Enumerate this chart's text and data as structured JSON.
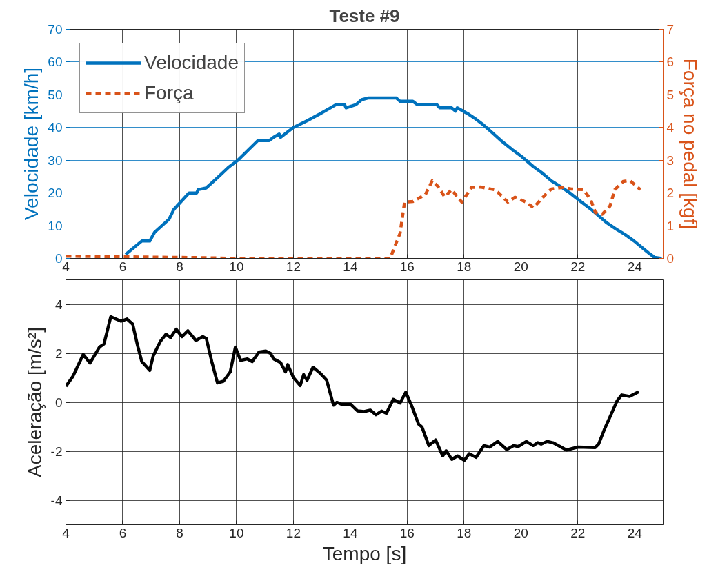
{
  "chart_data": [
    {
      "type": "line",
      "title": "Teste #9",
      "ylabel": "Velocidade [km/h]",
      "y2label": "Força no pedal [kgf]",
      "xlim": [
        4,
        25
      ],
      "xticks": [
        4,
        6,
        8,
        10,
        12,
        14,
        16,
        18,
        20,
        22,
        24
      ],
      "ylim": [
        0,
        70
      ],
      "yticks": [
        0,
        10,
        20,
        30,
        40,
        50,
        60,
        70
      ],
      "y2lim": [
        0,
        7
      ],
      "y2ticks": [
        0,
        1,
        2,
        3,
        4,
        5,
        6,
        7
      ],
      "grid": true,
      "legend": "top left",
      "series": [
        {
          "name": "Velocidade",
          "color": "#0072bd",
          "line_style": "solid",
          "x": [
            6.1,
            6.67,
            6.95,
            7.12,
            7.63,
            7.8,
            8.33,
            8.6,
            8.65,
            8.93,
            9.25,
            9.74,
            10.05,
            10.75,
            11.15,
            11.3,
            11.5,
            11.55,
            12.0,
            12.47,
            12.9,
            13.3,
            13.5,
            13.8,
            13.85,
            14.2,
            14.4,
            14.62,
            15.62,
            15.75,
            16.2,
            16.35,
            17.04,
            17.15,
            17.56,
            17.7,
            17.76,
            18.17,
            18.41,
            18.65,
            18.98,
            19.3,
            19.7,
            20.03,
            20.43,
            20.76,
            21.07,
            21.4,
            21.72,
            22.13,
            22.45,
            23.0,
            23.34,
            23.66,
            23.98,
            24.27,
            24.5,
            24.7,
            24.95
          ],
          "values": [
            1.2,
            5.3,
            5.3,
            8,
            12,
            15,
            20,
            20,
            21,
            21.5,
            24,
            28,
            30,
            36,
            36,
            37,
            38,
            37,
            40,
            42,
            44,
            46,
            47,
            47,
            46,
            47,
            48.5,
            49,
            49,
            48,
            48,
            47,
            47,
            46,
            46,
            45,
            46,
            44,
            42.6,
            41,
            38.5,
            36,
            33.2,
            31.1,
            28.1,
            26,
            23.7,
            21.9,
            20,
            17.2,
            15.1,
            11,
            9,
            7.3,
            5.3,
            3.2,
            1.6,
            0.3,
            0
          ]
        },
        {
          "name": "Força",
          "color": "#d95319",
          "axis": "y2",
          "line_style": "dashed",
          "x": [
            4.0,
            5.0,
            6.0,
            7.0,
            8.0,
            9.0,
            10.0,
            12.0,
            14.0,
            15.4,
            15.75,
            15.91,
            16.2,
            16.64,
            16.88,
            17.08,
            17.32,
            17.56,
            17.92,
            18.26,
            18.58,
            19.06,
            19.23,
            19.54,
            19.79,
            20.2,
            20.44,
            20.83,
            21.07,
            21.48,
            21.77,
            22.2,
            22.45,
            22.62,
            22.86,
            23.13,
            23.3,
            23.59,
            23.83,
            24.2
          ],
          "values": [
            0.07,
            0.06,
            0.05,
            0.04,
            0.03,
            0.02,
            0.0,
            0.0,
            0.0,
            0.0,
            0.77,
            1.72,
            1.74,
            1.95,
            2.37,
            2.2,
            1.88,
            2.1,
            1.72,
            2.17,
            2.18,
            2.1,
            1.99,
            1.72,
            1.87,
            1.71,
            1.55,
            1.92,
            2.12,
            2.17,
            2.12,
            2.1,
            1.8,
            1.4,
            1.35,
            1.6,
            2.1,
            2.35,
            2.38,
            2.1
          ]
        }
      ]
    },
    {
      "type": "line",
      "xlabel": "Tempo [s]",
      "ylabel": "Aceleração [m/s²]",
      "xlim": [
        4,
        25
      ],
      "xticks": [
        4,
        6,
        8,
        10,
        12,
        14,
        16,
        18,
        20,
        22,
        24
      ],
      "ylim": [
        -5,
        5
      ],
      "yticks": [
        -4,
        -2,
        0,
        2,
        4
      ],
      "grid": true,
      "series": [
        {
          "color": "#000000",
          "line_style": "solid",
          "x": [
            4.0,
            4.25,
            4.61,
            4.85,
            5.18,
            5.34,
            5.58,
            5.94,
            6.15,
            6.35,
            6.51,
            6.67,
            6.95,
            7.07,
            7.32,
            7.52,
            7.68,
            7.88,
            8.08,
            8.29,
            8.57,
            8.81,
            8.94,
            9.13,
            9.33,
            9.54,
            9.78,
            9.96,
            10.14,
            10.38,
            10.55,
            10.79,
            11.03,
            11.19,
            11.31,
            11.55,
            11.72,
            11.8,
            12.0,
            12.24,
            12.36,
            12.48,
            12.69,
            12.93,
            13.17,
            13.41,
            13.53,
            13.69,
            14.01,
            14.25,
            14.49,
            14.7,
            14.9,
            15.1,
            15.27,
            15.51,
            15.75,
            15.95,
            16.15,
            16.4,
            16.52,
            16.76,
            17.0,
            17.25,
            17.37,
            17.57,
            17.77,
            18.01,
            18.18,
            18.42,
            18.7,
            18.9,
            19.18,
            19.5,
            19.75,
            19.9,
            20.19,
            20.43,
            20.59,
            20.71,
            20.92,
            21.12,
            21.6,
            22.0,
            22.61,
            22.73,
            22.93,
            23.18,
            23.38,
            23.54,
            23.82,
            24.14
          ],
          "values": [
            0.65,
            1.06,
            1.95,
            1.6,
            2.25,
            2.38,
            3.49,
            3.31,
            3.4,
            3.19,
            2.37,
            1.66,
            1.3,
            1.89,
            2.48,
            2.78,
            2.64,
            2.98,
            2.68,
            2.92,
            2.52,
            2.68,
            2.6,
            1.66,
            0.79,
            0.86,
            1.24,
            2.25,
            1.71,
            1.77,
            1.66,
            2.05,
            2.09,
            2.0,
            1.77,
            1.62,
            1.24,
            1.54,
            1.01,
            0.68,
            1.13,
            0.9,
            1.43,
            1.2,
            0.9,
            -0.12,
            0.0,
            -0.08,
            -0.08,
            -0.35,
            -0.38,
            -0.32,
            -0.51,
            -0.36,
            -0.45,
            0.12,
            -0.03,
            0.41,
            -0.12,
            -0.89,
            -1.01,
            -1.77,
            -1.54,
            -2.19,
            -1.98,
            -2.33,
            -2.19,
            -2.37,
            -2.1,
            -2.25,
            -1.77,
            -1.83,
            -1.6,
            -1.93,
            -1.77,
            -1.81,
            -1.6,
            -1.77,
            -1.65,
            -1.71,
            -1.6,
            -1.65,
            -1.95,
            -1.83,
            -1.85,
            -1.71,
            -1.12,
            -0.47,
            0.06,
            0.3,
            0.24,
            0.43
          ]
        }
      ]
    }
  ]
}
